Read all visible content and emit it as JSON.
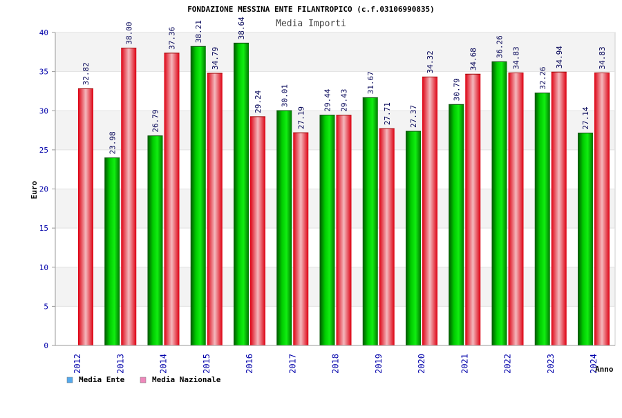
{
  "chart_data": {
    "type": "bar",
    "title": "FONDAZIONE MESSINA ENTE FILANTROPICO (c.f.03106990835)",
    "subtitle": "Media Importi",
    "xlabel": "Anno",
    "ylabel": "Euro",
    "ylim": [
      0,
      40
    ],
    "yticks": [
      0,
      5,
      10,
      15,
      20,
      25,
      30,
      35,
      40
    ],
    "categories": [
      "2012",
      "2013",
      "2014",
      "2015",
      "2016",
      "2017",
      "2018",
      "2019",
      "2020",
      "2021",
      "2022",
      "2023",
      "2024"
    ],
    "series": [
      {
        "name": "Media Ente",
        "color": "#00aa00",
        "values": [
          null,
          23.98,
          26.79,
          38.21,
          38.64,
          30.01,
          29.44,
          31.67,
          27.37,
          30.79,
          36.26,
          32.26,
          27.14
        ],
        "labels": [
          "",
          "23.98",
          "26.79",
          "38.21",
          "38.64",
          "30.01",
          "29.44",
          "31.67",
          "27.37",
          "30.79",
          "36.26",
          "32.26",
          "27.14"
        ]
      },
      {
        "name": "Media Nazionale",
        "color": "#ee1122",
        "values": [
          32.82,
          38.0,
          37.36,
          34.79,
          29.24,
          27.19,
          29.43,
          27.71,
          34.32,
          34.68,
          34.83,
          34.94,
          34.83
        ],
        "labels": [
          "32.82",
          "38.00",
          "37.36",
          "34.79",
          "29.24",
          "27.19",
          "29.43",
          "27.71",
          "34.32",
          "34.68",
          "34.83",
          "34.94",
          "34.83"
        ]
      }
    ],
    "legend": [
      {
        "label": "Media Ente",
        "swatch": "#55aaee"
      },
      {
        "label": "Media Nazionale",
        "swatch": "#ee88bb"
      }
    ],
    "grid": true,
    "legend_position": "bottom-left"
  }
}
